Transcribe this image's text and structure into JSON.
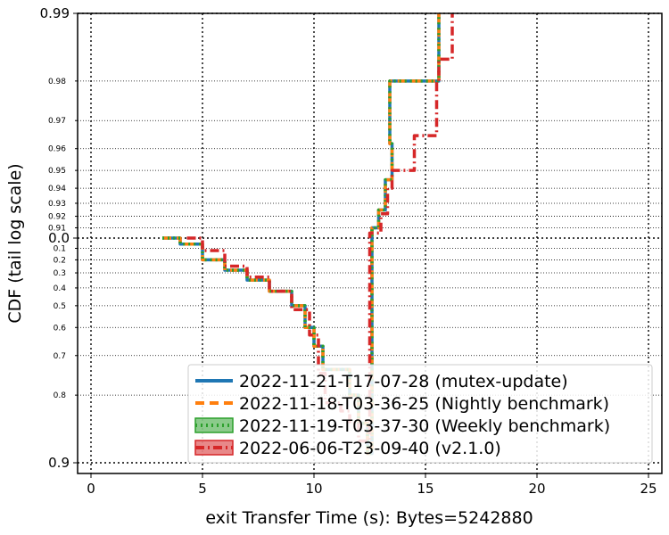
{
  "chart_data": {
    "type": "line",
    "title": "",
    "xlabel": "exit Transfer Time (s): Bytes=5242880",
    "ylabel": "CDF (tail log scale)",
    "xlim": [
      -0.6,
      25.6
    ],
    "x_ticks": [
      0,
      5,
      10,
      15,
      20,
      25
    ],
    "y_ticks": [
      {
        "value": 0.0,
        "label": "0.0",
        "major": true
      },
      {
        "value": 0.1,
        "label": "0.1",
        "major": false
      },
      {
        "value": 0.2,
        "label": "0.2",
        "major": false
      },
      {
        "value": 0.3,
        "label": "0.3",
        "major": false
      },
      {
        "value": 0.4,
        "label": "0.4",
        "major": false
      },
      {
        "value": 0.5,
        "label": "0.5",
        "major": false
      },
      {
        "value": 0.6,
        "label": "0.6",
        "major": false
      },
      {
        "value": 0.7,
        "label": "0.7",
        "major": false
      },
      {
        "value": 0.8,
        "label": "0.8",
        "major": false
      },
      {
        "value": 0.9,
        "label": "0.9",
        "major": true
      },
      {
        "value": 0.91,
        "label": "0.91",
        "major": false
      },
      {
        "value": 0.92,
        "label": "0.92",
        "major": false
      },
      {
        "value": 0.93,
        "label": "0.93",
        "major": false
      },
      {
        "value": 0.94,
        "label": "0.94",
        "major": false
      },
      {
        "value": 0.95,
        "label": "0.95",
        "major": false
      },
      {
        "value": 0.96,
        "label": "0.96",
        "major": false
      },
      {
        "value": 0.97,
        "label": "0.97",
        "major": false
      },
      {
        "value": 0.98,
        "label": "0.98",
        "major": false
      },
      {
        "value": 0.99,
        "label": "0.99",
        "major": true
      }
    ],
    "grid": true,
    "legend_position": "lower-right",
    "series": [
      {
        "name": "2022-11-21-T17-07-28 (mutex-update)",
        "color": "#1f77b4",
        "style": "solid",
        "points": [
          [
            3.2,
            0.0
          ],
          [
            4.0,
            0.06
          ],
          [
            5.0,
            0.2
          ],
          [
            6.0,
            0.28
          ],
          [
            7.0,
            0.35
          ],
          [
            8.0,
            0.42
          ],
          [
            9.0,
            0.5
          ],
          [
            9.6,
            0.6
          ],
          [
            10.0,
            0.67
          ],
          [
            10.4,
            0.74
          ],
          [
            11.2,
            0.74
          ],
          [
            11.6,
            0.8
          ],
          [
            12.0,
            0.85
          ],
          [
            12.4,
            0.89
          ],
          [
            12.6,
            0.91
          ],
          [
            12.9,
            0.925
          ],
          [
            13.2,
            0.945
          ],
          [
            13.5,
            0.962
          ],
          [
            13.4,
            0.962
          ],
          [
            13.4,
            0.98
          ],
          [
            15.1,
            0.98
          ],
          [
            15.6,
            0.98
          ],
          [
            15.6,
            0.99
          ]
        ]
      },
      {
        "name": "2022-11-18-T03-36-25 (Nightly benchmark)",
        "color": "#ff7f0e",
        "style": "dashed",
        "points": [
          [
            3.2,
            0.0
          ],
          [
            4.0,
            0.06
          ],
          [
            5.0,
            0.2
          ],
          [
            6.0,
            0.28
          ],
          [
            7.0,
            0.35
          ],
          [
            8.0,
            0.42
          ],
          [
            9.0,
            0.5
          ],
          [
            9.6,
            0.6
          ],
          [
            10.0,
            0.67
          ],
          [
            10.4,
            0.74
          ],
          [
            11.2,
            0.74
          ],
          [
            11.6,
            0.8
          ],
          [
            12.0,
            0.85
          ],
          [
            12.4,
            0.89
          ],
          [
            12.6,
            0.91
          ],
          [
            12.9,
            0.925
          ],
          [
            13.2,
            0.945
          ],
          [
            13.5,
            0.962
          ],
          [
            13.4,
            0.962
          ],
          [
            13.4,
            0.98
          ],
          [
            15.1,
            0.98
          ],
          [
            15.6,
            0.98
          ],
          [
            15.6,
            0.99
          ]
        ]
      },
      {
        "name": "2022-11-19-T03-37-30 (Weekly benchmark)",
        "color": "#2ca02c",
        "style": "dotted",
        "points": [
          [
            3.2,
            0.0
          ],
          [
            4.0,
            0.06
          ],
          [
            5.0,
            0.2
          ],
          [
            6.0,
            0.28
          ],
          [
            7.0,
            0.35
          ],
          [
            8.0,
            0.42
          ],
          [
            9.0,
            0.5
          ],
          [
            9.6,
            0.6
          ],
          [
            10.0,
            0.67
          ],
          [
            10.4,
            0.74
          ],
          [
            11.2,
            0.74
          ],
          [
            11.6,
            0.8
          ],
          [
            12.0,
            0.85
          ],
          [
            12.4,
            0.89
          ],
          [
            12.6,
            0.91
          ],
          [
            12.9,
            0.925
          ],
          [
            13.2,
            0.945
          ],
          [
            13.5,
            0.962
          ],
          [
            13.4,
            0.962
          ],
          [
            13.4,
            0.98
          ],
          [
            15.1,
            0.98
          ],
          [
            15.6,
            0.98
          ],
          [
            15.6,
            0.99
          ]
        ]
      },
      {
        "name": "2022-06-06-T23-09-40 (v2.1.0)",
        "color": "#d62728",
        "style": "dashdot",
        "points": [
          [
            4.3,
            0.0
          ],
          [
            5.0,
            0.12
          ],
          [
            6.0,
            0.25
          ],
          [
            7.0,
            0.33
          ],
          [
            8.0,
            0.42
          ],
          [
            9.0,
            0.52
          ],
          [
            9.8,
            0.63
          ],
          [
            10.2,
            0.75
          ],
          [
            10.5,
            0.815
          ],
          [
            11.2,
            0.83
          ],
          [
            11.6,
            0.85
          ],
          [
            12.0,
            0.875
          ],
          [
            12.5,
            0.905
          ],
          [
            13.0,
            0.922
          ],
          [
            13.3,
            0.94
          ],
          [
            13.5,
            0.95
          ],
          [
            14.5,
            0.95
          ],
          [
            14.5,
            0.965
          ],
          [
            15.4,
            0.965
          ],
          [
            15.5,
            0.98
          ],
          [
            15.6,
            0.984
          ],
          [
            16.2,
            0.984
          ],
          [
            16.2,
            0.99
          ]
        ]
      }
    ]
  }
}
